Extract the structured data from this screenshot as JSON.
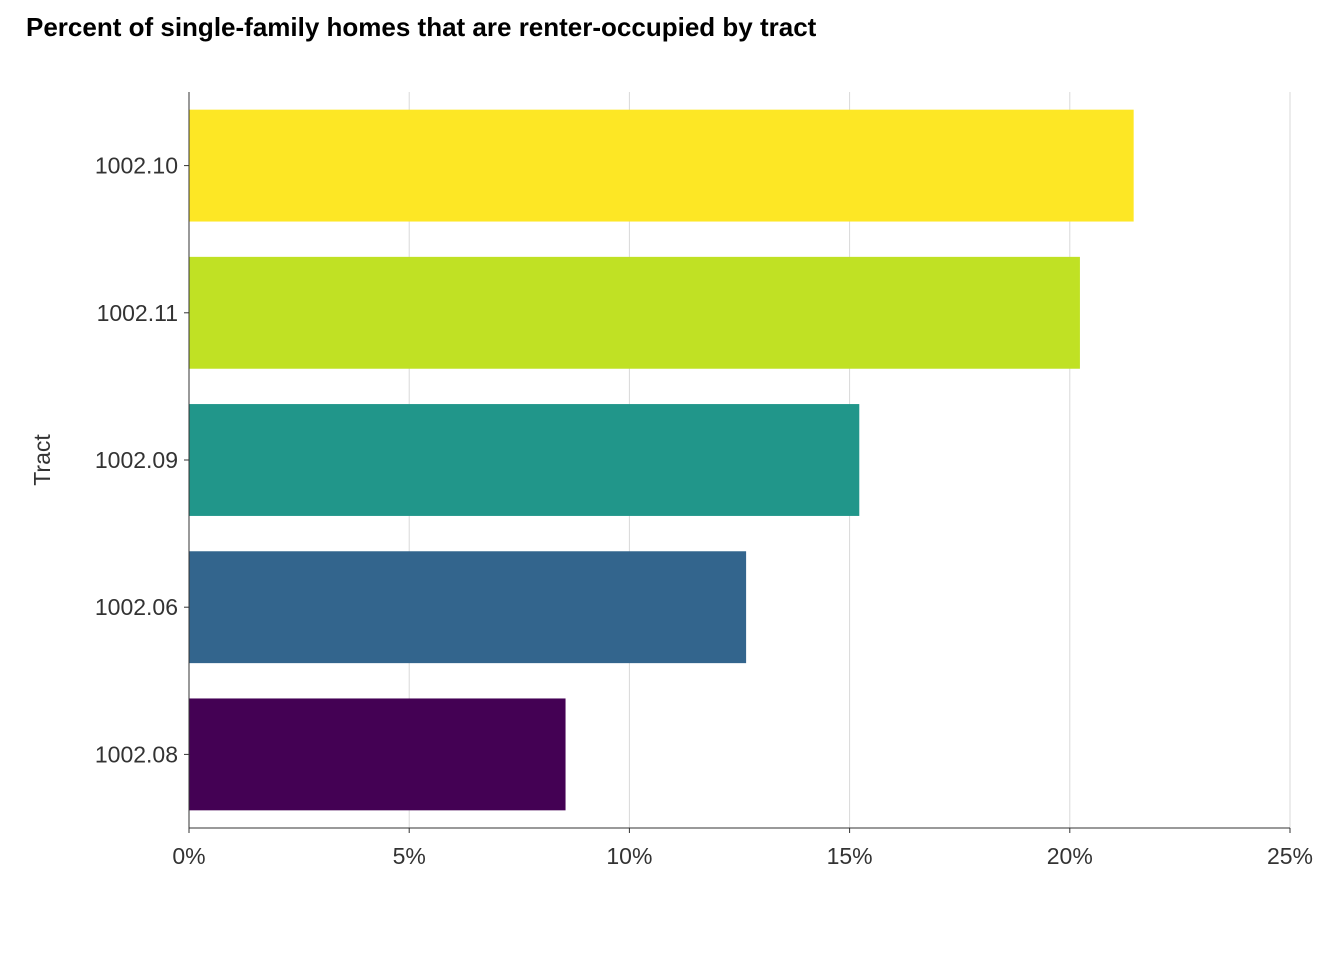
{
  "chart_data": {
    "type": "bar",
    "orientation": "horizontal",
    "title": "Percent of single-family homes that are renter-occupied by tract",
    "xlabel": "",
    "ylabel": "Tract",
    "xlim": [
      0,
      25
    ],
    "x_ticks": [
      0,
      5,
      10,
      15,
      20,
      25
    ],
    "x_tick_labels": [
      "0%",
      "5%",
      "10%",
      "15%",
      "20%",
      "25%"
    ],
    "categories": [
      "1002.10",
      "1002.11",
      "1002.09",
      "1002.06",
      "1002.08"
    ],
    "values": [
      21.45,
      20.23,
      15.22,
      12.65,
      8.55
    ],
    "colors": [
      "#fde725",
      "#c0e124",
      "#21968a",
      "#33658d",
      "#440154"
    ],
    "grid": "vertical-major",
    "legend": "none"
  }
}
